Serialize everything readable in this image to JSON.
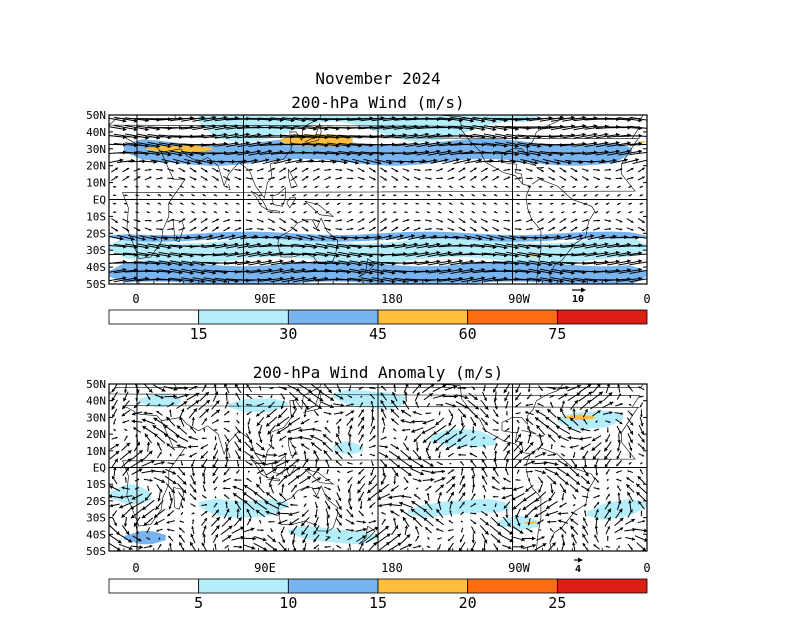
{
  "figure": {
    "title": "November 2024",
    "palette": [
      "#ffffff",
      "#b4eefa",
      "#78b4f0",
      "#ffbe3c",
      "#ff6e14",
      "#dc1e14"
    ]
  },
  "panels": [
    {
      "title": "200-hPa Wind (m/s)",
      "lat_labels": [
        "50N",
        "40N",
        "30N",
        "20N",
        "10N",
        "EQ",
        "10S",
        "20S",
        "30S",
        "40S",
        "50S"
      ],
      "lon_labels": [
        "0",
        "90E",
        "180",
        "90W",
        "0"
      ],
      "reference_vector_label": "10",
      "colorbar_labels": [
        "15",
        "30",
        "45",
        "60",
        "75"
      ]
    },
    {
      "title": "200-hPa Wind Anomaly (m/s)",
      "lat_labels": [
        "50N",
        "40N",
        "30N",
        "20N",
        "10N",
        "EQ",
        "10S",
        "20S",
        "30S",
        "40S",
        "50S"
      ],
      "lon_labels": [
        "0",
        "90E",
        "180",
        "90W",
        "0"
      ],
      "reference_vector_label": "4",
      "colorbar_labels": [
        "5",
        "10",
        "15",
        "20",
        "25"
      ]
    }
  ]
}
